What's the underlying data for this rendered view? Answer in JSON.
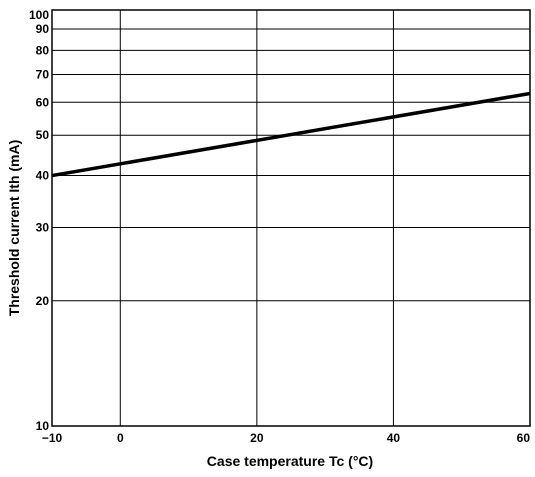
{
  "chart_data": {
    "type": "line",
    "xlabel": "Case temperature Tc (°C)",
    "ylabel": "Threshold current Ith (mA)",
    "xlim": [
      -10,
      60
    ],
    "ylim": [
      10,
      100
    ],
    "yscale": "log",
    "grid": true,
    "xticks": [
      -10,
      0,
      20,
      40,
      60
    ],
    "xtick_labels": [
      "−10",
      "0",
      "20",
      "40",
      "60"
    ],
    "yticks": [
      10,
      20,
      30,
      40,
      50,
      60,
      70,
      80,
      90,
      100
    ],
    "ytick_labels": [
      "10",
      "20",
      "30",
      "40",
      "50",
      "60",
      "70",
      "80",
      "90",
      "100"
    ],
    "x_gridlines": [
      0,
      20,
      40
    ],
    "y_gridlines": [
      20,
      30,
      40,
      50,
      60,
      70,
      80,
      90,
      100
    ],
    "series": [
      {
        "x": [
          -10,
          60
        ],
        "y": [
          40,
          63
        ]
      }
    ]
  }
}
